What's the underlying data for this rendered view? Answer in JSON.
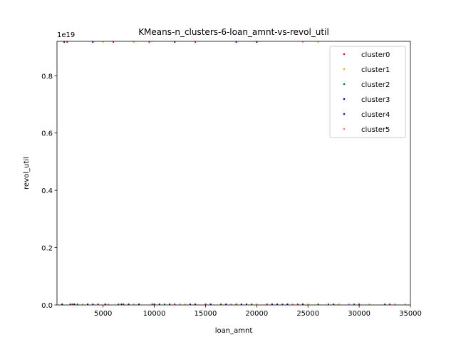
{
  "chart_data": {
    "type": "scatter",
    "title": "KMeans-n_clusters-6-loan_amnt-vs-revol_util",
    "xlabel": "loan_amnt",
    "ylabel": "revol_util",
    "xlim": [
      500,
      35000
    ],
    "ylim": [
      0,
      9.2e+18
    ],
    "x_ticks": [
      5000,
      10000,
      15000,
      20000,
      25000,
      30000,
      35000
    ],
    "x_tick_labels": [
      "5000",
      "10000",
      "15000",
      "20000",
      "25000",
      "30000",
      "35000"
    ],
    "y_ticks": [
      0,
      2e+18,
      4e+18,
      6e+18,
      8e+18
    ],
    "y_tick_labels": [
      "0.0",
      "0.2",
      "0.4",
      "0.6",
      "0.8"
    ],
    "y_offset_label": "1e19",
    "grid": false,
    "legend_position": "top-right",
    "series": [
      {
        "name": "cluster0",
        "color": "#ff0000",
        "points": [
          [
            2000,
            0
          ],
          [
            4500,
            0
          ],
          [
            7000,
            0
          ],
          [
            9800,
            0
          ],
          [
            12000,
            0
          ],
          [
            15000,
            0
          ],
          [
            18000,
            0
          ],
          [
            21000,
            0
          ],
          [
            24000,
            0
          ],
          [
            27000,
            0
          ],
          [
            30000,
            0
          ],
          [
            33000,
            0
          ],
          [
            1500,
            9.2e+18
          ],
          [
            6000,
            9.2e+18
          ],
          [
            9500,
            9.2e+18
          ],
          [
            14000,
            9.2e+18
          ]
        ]
      },
      {
        "name": "cluster1",
        "color": "#ffa500",
        "points": [
          [
            3000,
            0
          ],
          [
            8000,
            0
          ],
          [
            13000,
            0
          ],
          [
            20000,
            0
          ],
          [
            25000,
            0
          ],
          [
            28000,
            0
          ],
          [
            31000,
            0
          ],
          [
            34500,
            0
          ],
          [
            5000,
            9.2e+18
          ],
          [
            8000,
            9.2e+18
          ],
          [
            20000,
            9.2e+18
          ],
          [
            26000,
            9.2e+18
          ]
        ]
      },
      {
        "name": "cluster2",
        "color": "#008000",
        "points": [
          [
            2500,
            0
          ],
          [
            6500,
            0
          ],
          [
            11000,
            0
          ],
          [
            16500,
            0
          ],
          [
            19500,
            0
          ],
          [
            22500,
            0
          ],
          [
            26000,
            0
          ],
          [
            29500,
            0
          ],
          [
            32500,
            0
          ]
        ]
      },
      {
        "name": "cluster3",
        "color": "#0000cd",
        "points": [
          [
            1000,
            0
          ],
          [
            2200,
            0
          ],
          [
            3500,
            0
          ],
          [
            5200,
            0
          ],
          [
            6800,
            0
          ],
          [
            8500,
            0
          ],
          [
            10000,
            0
          ],
          [
            11500,
            0
          ],
          [
            13500,
            0
          ],
          [
            15500,
            0
          ],
          [
            17000,
            0
          ],
          [
            19000,
            0
          ],
          [
            21500,
            0
          ],
          [
            23000,
            0
          ],
          [
            24500,
            0
          ],
          [
            1200,
            9.2e+18
          ],
          [
            4000,
            9.2e+18
          ],
          [
            18000,
            9.2e+18
          ]
        ]
      },
      {
        "name": "cluster4",
        "color": "#4b0082",
        "points": [
          [
            1800,
            0
          ],
          [
            4000,
            0
          ],
          [
            7500,
            0
          ],
          [
            10500,
            0
          ],
          [
            14000,
            0
          ],
          [
            18500,
            0
          ],
          [
            22000,
            0
          ],
          [
            27500,
            0
          ],
          [
            12000,
            9.2e+18
          ],
          [
            20000,
            9.2e+18
          ]
        ]
      },
      {
        "name": "cluster5",
        "color": "#ff69b4",
        "points": [
          [
            5500,
            0
          ],
          [
            12500,
            0
          ],
          [
            17500,
            0
          ],
          [
            23500,
            0
          ],
          [
            29000,
            0
          ],
          [
            33500,
            0
          ],
          [
            24500,
            9.2e+18
          ]
        ]
      }
    ]
  }
}
